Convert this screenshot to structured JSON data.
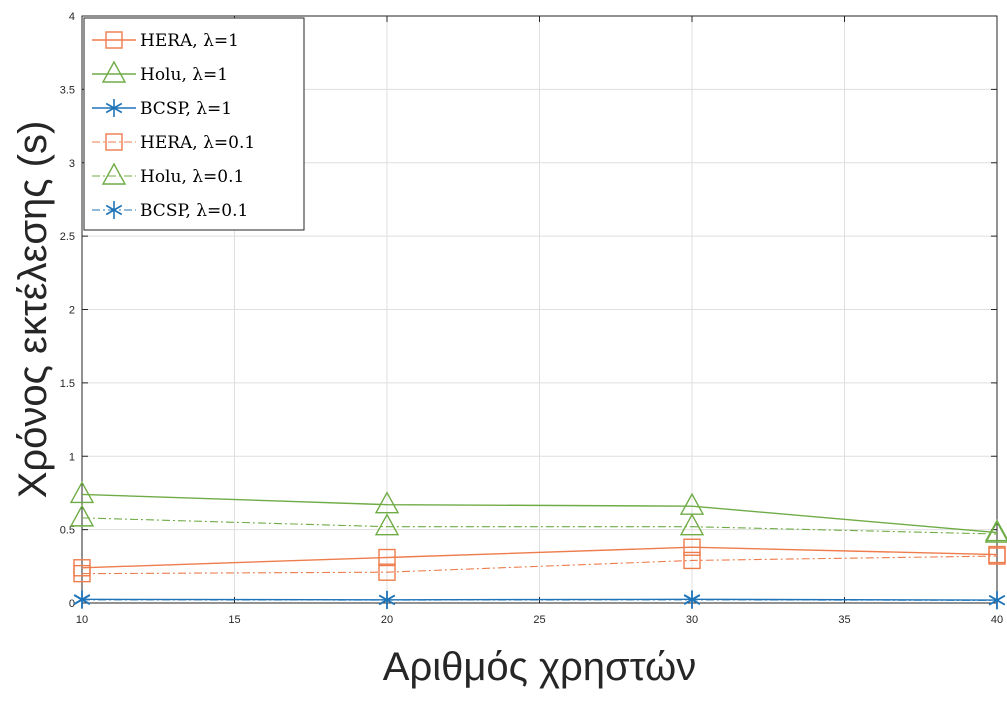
{
  "chart_data": {
    "type": "line",
    "title": "",
    "xlabel": "Αριθμός χρηστών",
    "ylabel": "Χρόνος εκτέλεσης (s)",
    "xlim": [
      10,
      40
    ],
    "ylim": [
      0,
      4
    ],
    "xticks": [
      10,
      15,
      20,
      25,
      30,
      35,
      40
    ],
    "yticks": [
      0,
      0.5,
      1,
      1.5,
      2,
      2.5,
      3,
      3.5,
      4
    ],
    "grid": true,
    "legend_position": "top-left",
    "x": [
      10,
      20,
      30,
      40
    ],
    "series": [
      {
        "name": "HERA, λ=1",
        "color": "#ee7c4c",
        "marker": "square",
        "line": "solid",
        "values": [
          0.24,
          0.31,
          0.38,
          0.33
        ]
      },
      {
        "name": "Holu, λ=1",
        "color": "#6fac46",
        "marker": "triangle",
        "line": "solid",
        "values": [
          0.74,
          0.67,
          0.66,
          0.48
        ]
      },
      {
        "name": "BCSP, λ=1",
        "color": "#1f74b8",
        "marker": "asterisk",
        "line": "solid",
        "values": [
          0.025,
          0.022,
          0.025,
          0.02
        ]
      },
      {
        "name": "HERA, λ=0.1",
        "color": "#ee7c4c",
        "marker": "square",
        "line": "dashdot",
        "values": [
          0.2,
          0.21,
          0.29,
          0.32
        ]
      },
      {
        "name": "Holu, λ=0.1",
        "color": "#6fac46",
        "marker": "triangle",
        "line": "dashdot",
        "values": [
          0.58,
          0.52,
          0.52,
          0.47
        ]
      },
      {
        "name": "BCSP, λ=0.1",
        "color": "#1f74b8",
        "marker": "asterisk",
        "line": "dashdot",
        "values": [
          0.022,
          0.02,
          0.022,
          0.018
        ]
      }
    ]
  }
}
